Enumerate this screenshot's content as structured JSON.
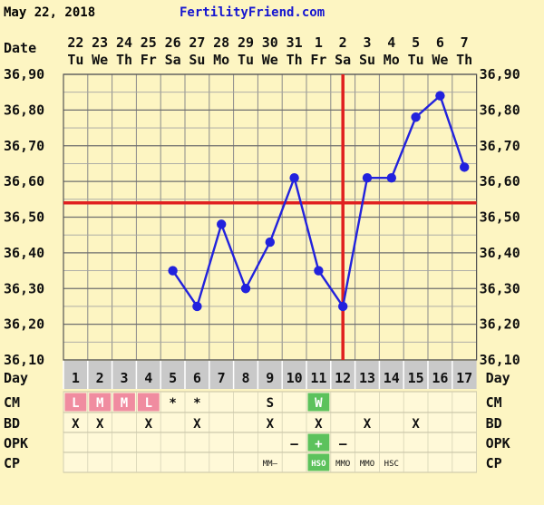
{
  "header": {
    "date_text": "May 22, 2018",
    "site_text": "FertilityFriend.com",
    "site_color": "#1515D0"
  },
  "colors": {
    "background": "#FDF5C2",
    "grid": "#8A8A8A",
    "line": "#2222DD",
    "coverline": "#E02020",
    "menstruation": "#F08CA0",
    "fertile": "#5CC25C"
  },
  "row_labels": {
    "date": "Date",
    "day": "Day",
    "cm": "CM",
    "bd": "BD",
    "opk": "OPK",
    "cp": "CP"
  },
  "chart_data": {
    "type": "line",
    "title": "",
    "dates": [
      "22",
      "23",
      "24",
      "25",
      "26",
      "27",
      "28",
      "29",
      "30",
      "31",
      "1",
      "2",
      "3",
      "4",
      "5",
      "6",
      "7"
    ],
    "weekdays": [
      "Tu",
      "We",
      "Th",
      "Fr",
      "Sa",
      "Su",
      "Mo",
      "Tu",
      "We",
      "Th",
      "Fr",
      "Sa",
      "Su",
      "Mo",
      "Tu",
      "We",
      "Th"
    ],
    "cycle_days": [
      "1",
      "2",
      "3",
      "4",
      "5",
      "6",
      "7",
      "8",
      "9",
      "10",
      "11",
      "12",
      "13",
      "14",
      "15",
      "16",
      "17"
    ],
    "y_ticks": [
      "36,90",
      "36,80",
      "36,70",
      "36,60",
      "36,50",
      "36,40",
      "36,30",
      "36,20",
      "36,10"
    ],
    "ylim": [
      36.1,
      36.9
    ],
    "series": [
      {
        "values": [
          null,
          null,
          null,
          null,
          36.35,
          36.25,
          36.48,
          36.3,
          36.43,
          36.61,
          36.35,
          36.25,
          36.61,
          36.61,
          36.78,
          36.84,
          36.64
        ]
      }
    ],
    "coverline": 36.54,
    "ovulation_day_index": 11,
    "grid": true
  },
  "rows": {
    "cm": [
      "L",
      "M",
      "M",
      "L",
      "*",
      "*",
      "",
      "",
      "S",
      "",
      "W",
      "",
      "",
      "",
      "",
      "",
      ""
    ],
    "cm_style": [
      "m",
      "m",
      "m",
      "m",
      "",
      "",
      "",
      "",
      "",
      "",
      "f",
      "",
      "",
      "",
      "",
      "",
      ""
    ],
    "bd": [
      "X",
      "X",
      "",
      "X",
      "",
      "X",
      "",
      "",
      "X",
      "",
      "X",
      "",
      "X",
      "",
      "X",
      "",
      ""
    ],
    "opk": [
      "",
      "",
      "",
      "",
      "",
      "",
      "",
      "",
      "",
      "–",
      "+",
      "–",
      "",
      "",
      "",
      "",
      ""
    ],
    "opk_style": [
      "",
      "",
      "",
      "",
      "",
      "",
      "",
      "",
      "",
      "",
      "f",
      "",
      "",
      "",
      "",
      "",
      ""
    ],
    "cp": [
      "",
      "",
      "",
      "",
      "",
      "",
      "",
      "",
      "MM–",
      "",
      "HSO",
      "MMO",
      "MMO",
      "HSC",
      "",
      "",
      ""
    ],
    "cp_style": [
      "",
      "",
      "",
      "",
      "",
      "",
      "",
      "",
      "",
      "",
      "f",
      "",
      "",
      "",
      "",
      "",
      ""
    ]
  }
}
